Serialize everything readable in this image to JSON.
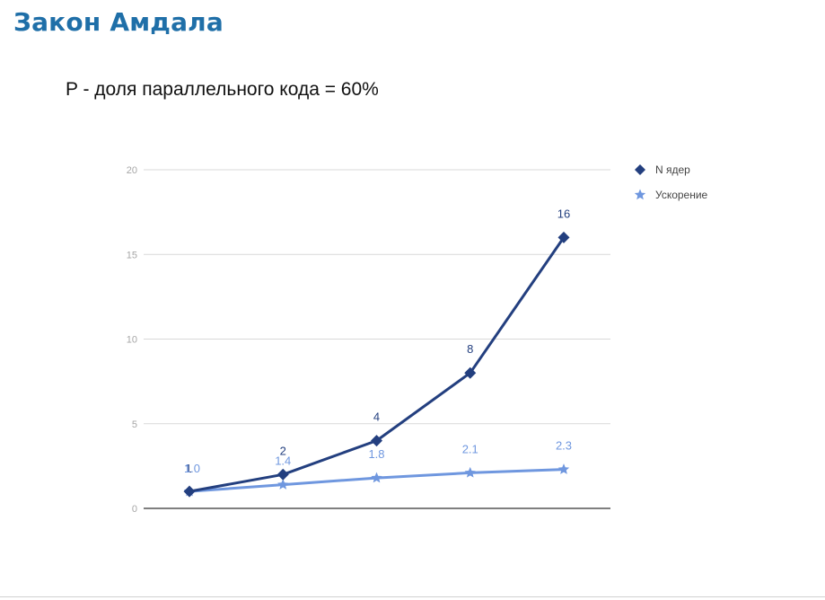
{
  "slide": {
    "title": "Закон Амдала",
    "subtitle": "P - доля параллельного кода = 60%"
  },
  "chart_data": {
    "type": "line",
    "title": "",
    "xlabel": "",
    "ylabel": "",
    "x": [
      1,
      2,
      3,
      4,
      5
    ],
    "ylim": [
      0,
      20
    ],
    "yticks": [
      0,
      5,
      10,
      15,
      20
    ],
    "grid": true,
    "legend_position": "right",
    "series": [
      {
        "name": "N ядер",
        "marker": "diamond",
        "color": "#233f7f",
        "values": [
          1,
          2,
          4,
          8,
          16
        ],
        "labels": [
          "1",
          "2",
          "4",
          "8",
          "16"
        ]
      },
      {
        "name": "Ускорение",
        "marker": "star",
        "color": "#6f97df",
        "values": [
          1,
          1.4,
          1.8,
          2.1,
          2.3
        ],
        "labels": [
          "1.0",
          "1.4",
          "1.8",
          "2.1",
          "2.3"
        ]
      }
    ]
  }
}
